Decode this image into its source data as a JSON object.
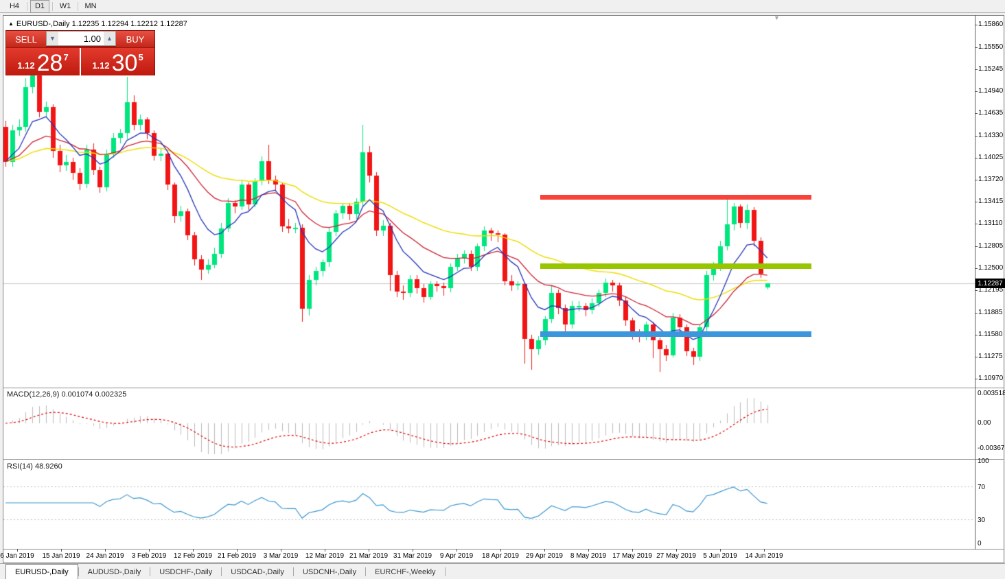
{
  "toolbar": {
    "timeframes": [
      {
        "label": "H4",
        "active": false
      },
      {
        "label": "D1",
        "active": true
      },
      {
        "label": "W1",
        "active": false
      },
      {
        "label": "MN",
        "active": false
      }
    ]
  },
  "chart": {
    "caret": "▲",
    "title": "EURUSD-,Daily",
    "ohlc_text": "1.12235 1.12294 1.12212 1.12287",
    "scroll_marker": "▼"
  },
  "trade_panel": {
    "sell_label": "SELL",
    "buy_label": "BUY",
    "volume": "1.00",
    "spin_down": "▼",
    "spin_up": "▲",
    "sell_price_small": "1.12",
    "sell_price_big": "28",
    "sell_price_sup": "7",
    "buy_price_small": "1.12",
    "buy_price_big": "30",
    "buy_price_sup": "5"
  },
  "price_axis": {
    "labels": [
      "1.15860",
      "1.15550",
      "1.15245",
      "1.14940",
      "1.14635",
      "1.14330",
      "1.14025",
      "1.13720",
      "1.13415",
      "1.13110",
      "1.12805",
      "1.12500",
      "1.12195",
      "1.11885",
      "1.11580",
      "1.11275",
      "1.10970"
    ],
    "current": "1.12287"
  },
  "macd_panel": {
    "label": "MACD(12,26,9)",
    "value_main": "0.001074",
    "value_signal": "0.002325",
    "axis_labels": [
      "0.003518",
      "0.00",
      "-0.00367"
    ]
  },
  "rsi_panel": {
    "label": "RSI(14)",
    "value": "48.9260",
    "axis_labels": [
      "100",
      "70",
      "30",
      "0"
    ]
  },
  "date_axis": {
    "labels": [
      "6 Jan 2019",
      "15 Jan 2019",
      "24 Jan 2019",
      "3 Feb 2019",
      "12 Feb 2019",
      "21 Feb 2019",
      "3 Mar 2019",
      "12 Mar 2019",
      "21 Mar 2019",
      "31 Mar 2019",
      "9 Apr 2019",
      "18 Apr 2019",
      "29 Apr 2019",
      "8 May 2019",
      "17 May 2019",
      "27 May 2019",
      "5 Jun 2019",
      "14 Jun 2019"
    ]
  },
  "tabs": [
    {
      "label": "EURUSD-,Daily",
      "active": true
    },
    {
      "label": "AUDUSD-,Daily",
      "active": false
    },
    {
      "label": "USDCHF-,Daily",
      "active": false
    },
    {
      "label": "USDCAD-,Daily",
      "active": false
    },
    {
      "label": "USDCNH-,Daily",
      "active": false
    },
    {
      "label": "EURCHF-,Weekly",
      "active": false
    }
  ],
  "colors": {
    "bull": "#00E67E",
    "bear": "#F21515",
    "ma_fast_blue": "#2233BB",
    "ma_mid_red": "#CC2233",
    "ma_slow_yellow": "#EEDD00",
    "level_red": "#F94239",
    "level_olive": "#97C500",
    "level_blue": "#3C96DC",
    "macd_hist": "#BBBBBB",
    "macd_signal": "#E00000",
    "rsi_line": "#3A96D2",
    "grid": "#C8C8C8",
    "current_tag_bg": "#000000"
  },
  "chart_data": {
    "type": "candlestick",
    "symbol": "EURUSD-",
    "timeframe": "Daily",
    "title": "EURUSD-,Daily",
    "current_bar": {
      "open": 1.12235,
      "high": 1.12294,
      "low": 1.12212,
      "close": 1.12287
    },
    "ylim": [
      1.109,
      1.1593
    ],
    "x_range": [
      "6 Jan 2019",
      "14 Jun 2019"
    ],
    "indicators": {
      "ma_fast": {
        "type": "EMA",
        "period": 8,
        "color": "#2233BB"
      },
      "ma_mid": {
        "type": "EMA",
        "period": 20,
        "color": "#CC2233"
      },
      "ma_slow": {
        "type": "EMA",
        "period": 45,
        "color": "#EEDD00"
      },
      "macd": {
        "fast": 12,
        "slow": 26,
        "signal": 9,
        "main_value": 0.001074,
        "signal_value": 0.002325,
        "axis": [
          0.003518,
          0.0,
          -0.00367
        ]
      },
      "rsi": {
        "period": 14,
        "value": 48.926,
        "levels": [
          30,
          70
        ]
      }
    },
    "levels": [
      {
        "name": "resistance-red",
        "price": 1.1348,
        "color": "#F94239",
        "thickness": 7
      },
      {
        "name": "mid-olive",
        "price": 1.1253,
        "color": "#97C500",
        "thickness": 8
      },
      {
        "name": "support-blue",
        "price": 1.1159,
        "color": "#3C96DC",
        "thickness": 8
      }
    ],
    "candles": [
      [
        1.1445,
        1.1453,
        1.139,
        1.1397
      ],
      [
        1.1397,
        1.1448,
        1.139,
        1.144
      ],
      [
        1.144,
        1.1455,
        1.1432,
        1.1445
      ],
      [
        1.1445,
        1.1512,
        1.1438,
        1.15
      ],
      [
        1.15,
        1.1522,
        1.1492,
        1.1516
      ],
      [
        1.1516,
        1.152,
        1.1458,
        1.1466
      ],
      [
        1.1466,
        1.148,
        1.1458,
        1.1472
      ],
      [
        1.1472,
        1.1476,
        1.1402,
        1.1412
      ],
      [
        1.1412,
        1.142,
        1.1382,
        1.1392
      ],
      [
        1.1392,
        1.1406,
        1.1384,
        1.1397
      ],
      [
        1.1397,
        1.1402,
        1.1372,
        1.1381
      ],
      [
        1.1381,
        1.1388,
        1.1358,
        1.1366
      ],
      [
        1.1366,
        1.142,
        1.136,
        1.1414
      ],
      [
        1.1414,
        1.1422,
        1.1378,
        1.1385
      ],
      [
        1.1385,
        1.139,
        1.1354,
        1.1362
      ],
      [
        1.1362,
        1.1414,
        1.1356,
        1.1408
      ],
      [
        1.1408,
        1.1436,
        1.1402,
        1.143
      ],
      [
        1.143,
        1.1442,
        1.1422,
        1.1436
      ],
      [
        1.1436,
        1.1514,
        1.1428,
        1.1479
      ],
      [
        1.1479,
        1.1488,
        1.144,
        1.1448
      ],
      [
        1.1448,
        1.1462,
        1.144,
        1.1455
      ],
      [
        1.1455,
        1.1458,
        1.1428,
        1.1436
      ],
      [
        1.1436,
        1.144,
        1.1398,
        1.1405
      ],
      [
        1.1405,
        1.1415,
        1.1398,
        1.1408
      ],
      [
        1.1408,
        1.141,
        1.1358,
        1.1365
      ],
      [
        1.1365,
        1.1368,
        1.1312,
        1.1322
      ],
      [
        1.1322,
        1.1336,
        1.1314,
        1.1328
      ],
      [
        1.1328,
        1.1332,
        1.1288,
        1.1295
      ],
      [
        1.1295,
        1.13,
        1.1254,
        1.1262
      ],
      [
        1.1262,
        1.1268,
        1.1234,
        1.1248
      ],
      [
        1.1248,
        1.1262,
        1.1242,
        1.1255
      ],
      [
        1.1255,
        1.1278,
        1.125,
        1.127
      ],
      [
        1.127,
        1.1312,
        1.1264,
        1.1305
      ],
      [
        1.1305,
        1.1346,
        1.13,
        1.134
      ],
      [
        1.134,
        1.1344,
        1.1326,
        1.1335
      ],
      [
        1.1335,
        1.1372,
        1.133,
        1.1365
      ],
      [
        1.1365,
        1.1368,
        1.133,
        1.1338
      ],
      [
        1.1338,
        1.1374,
        1.1334,
        1.137
      ],
      [
        1.137,
        1.1404,
        1.1364,
        1.1398
      ],
      [
        1.1398,
        1.142,
        1.1366,
        1.1372
      ],
      [
        1.1372,
        1.1378,
        1.1356,
        1.1365
      ],
      [
        1.1365,
        1.1368,
        1.13,
        1.1308
      ],
      [
        1.1308,
        1.1318,
        1.1298,
        1.1305
      ],
      [
        1.1305,
        1.1312,
        1.1298,
        1.1306
      ],
      [
        1.1306,
        1.131,
        1.1176,
        1.1194
      ],
      [
        1.1194,
        1.124,
        1.1184,
        1.1234
      ],
      [
        1.1234,
        1.1252,
        1.1226,
        1.1246
      ],
      [
        1.1246,
        1.1262,
        1.1238,
        1.1258
      ],
      [
        1.1258,
        1.1306,
        1.1252,
        1.13
      ],
      [
        1.13,
        1.133,
        1.1294,
        1.1326
      ],
      [
        1.1326,
        1.134,
        1.1318,
        1.1336
      ],
      [
        1.1336,
        1.134,
        1.1316,
        1.1325
      ],
      [
        1.1325,
        1.1346,
        1.1318,
        1.1342
      ],
      [
        1.1342,
        1.1448,
        1.1336,
        1.141
      ],
      [
        1.141,
        1.1418,
        1.1368,
        1.1378
      ],
      [
        1.1378,
        1.1382,
        1.1294,
        1.1302
      ],
      [
        1.1302,
        1.1316,
        1.1294,
        1.1309
      ],
      [
        1.1309,
        1.1312,
        1.1218,
        1.124
      ],
      [
        1.124,
        1.1246,
        1.121,
        1.1218
      ],
      [
        1.1218,
        1.1226,
        1.1206,
        1.1216
      ],
      [
        1.1216,
        1.124,
        1.121,
        1.1235
      ],
      [
        1.1235,
        1.124,
        1.1214,
        1.1222
      ],
      [
        1.1222,
        1.1228,
        1.1202,
        1.121
      ],
      [
        1.121,
        1.1232,
        1.1206,
        1.1228
      ],
      [
        1.1228,
        1.1232,
        1.1218,
        1.1225
      ],
      [
        1.1225,
        1.123,
        1.1212,
        1.1222
      ],
      [
        1.1222,
        1.1256,
        1.1216,
        1.1252
      ],
      [
        1.1252,
        1.127,
        1.1246,
        1.1264
      ],
      [
        1.1264,
        1.1274,
        1.1256,
        1.127
      ],
      [
        1.127,
        1.1274,
        1.1246,
        1.1252
      ],
      [
        1.1252,
        1.1284,
        1.1246,
        1.128
      ],
      [
        1.128,
        1.1308,
        1.1274,
        1.1302
      ],
      [
        1.1302,
        1.1306,
        1.1288,
        1.1298
      ],
      [
        1.1298,
        1.1302,
        1.1286,
        1.1296
      ],
      [
        1.1296,
        1.1298,
        1.1226,
        1.1232
      ],
      [
        1.1232,
        1.124,
        1.1218,
        1.1226
      ],
      [
        1.1226,
        1.1232,
        1.122,
        1.1228
      ],
      [
        1.1228,
        1.123,
        1.1118,
        1.1152
      ],
      [
        1.1152,
        1.1158,
        1.111,
        1.1138
      ],
      [
        1.1138,
        1.1156,
        1.113,
        1.115
      ],
      [
        1.115,
        1.1184,
        1.1144,
        1.118
      ],
      [
        1.118,
        1.1226,
        1.1174,
        1.1216
      ],
      [
        1.1216,
        1.122,
        1.1186,
        1.1195
      ],
      [
        1.1195,
        1.12,
        1.1162,
        1.1172
      ],
      [
        1.1172,
        1.1204,
        1.1166,
        1.1198
      ],
      [
        1.1198,
        1.1204,
        1.119,
        1.1198
      ],
      [
        1.1198,
        1.1202,
        1.1184,
        1.1192
      ],
      [
        1.1192,
        1.1208,
        1.1186,
        1.1202
      ],
      [
        1.1202,
        1.122,
        1.1196,
        1.1216
      ],
      [
        1.1216,
        1.1236,
        1.121,
        1.123
      ],
      [
        1.123,
        1.1234,
        1.1218,
        1.1226
      ],
      [
        1.1226,
        1.123,
        1.1198,
        1.1205
      ],
      [
        1.1205,
        1.121,
        1.117,
        1.1178
      ],
      [
        1.1178,
        1.1182,
        1.1152,
        1.116
      ],
      [
        1.116,
        1.1166,
        1.1148,
        1.1156
      ],
      [
        1.1156,
        1.1176,
        1.115,
        1.1172
      ],
      [
        1.1172,
        1.1176,
        1.1126,
        1.115
      ],
      [
        1.115,
        1.1154,
        1.1107,
        1.1138
      ],
      [
        1.1138,
        1.1144,
        1.1122,
        1.113
      ],
      [
        1.113,
        1.1188,
        1.1126,
        1.1182
      ],
      [
        1.1182,
        1.1186,
        1.116,
        1.1168
      ],
      [
        1.1168,
        1.1172,
        1.1128,
        1.1135
      ],
      [
        1.1135,
        1.114,
        1.1116,
        1.1128
      ],
      [
        1.1128,
        1.1172,
        1.1122,
        1.1168
      ],
      [
        1.1168,
        1.1246,
        1.1162,
        1.124
      ],
      [
        1.124,
        1.1258,
        1.1232,
        1.1252
      ],
      [
        1.1252,
        1.1288,
        1.1246,
        1.128
      ],
      [
        1.128,
        1.1348,
        1.1274,
        1.131
      ],
      [
        1.131,
        1.134,
        1.1302,
        1.1335
      ],
      [
        1.1335,
        1.1338,
        1.1306,
        1.1312
      ],
      [
        1.1312,
        1.1338,
        1.1304,
        1.133
      ],
      [
        1.133,
        1.1334,
        1.128,
        1.1288
      ],
      [
        1.1288,
        1.1292,
        1.1236,
        1.1242
      ],
      [
        1.12235,
        1.12294,
        1.12212,
        1.12287
      ]
    ]
  }
}
